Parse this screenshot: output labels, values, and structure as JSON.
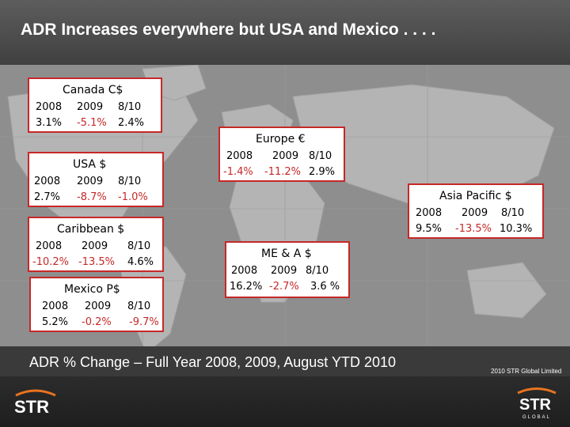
{
  "slide": {
    "title": "ADR Increases everywhere but USA and Mexico . . . .",
    "caption": "ADR % Change – Full Year 2008, 2009, August YTD 2010",
    "copyright": "2010 STR Global Limited"
  },
  "regions": [
    {
      "name": "Canada C$",
      "labels": [
        "2008",
        "2009",
        "8/10"
      ],
      "values": [
        "3.1%",
        "-5.1%",
        "2.4%"
      ]
    },
    {
      "name": "USA $",
      "labels": [
        "2008",
        "2009",
        "8/10"
      ],
      "values": [
        "2.7%",
        "-8.7%",
        "-1.0%"
      ]
    },
    {
      "name": "Caribbean $",
      "labels": [
        "2008",
        "2009",
        "8/10"
      ],
      "values": [
        "-10.2%",
        "-13.5%",
        "4.6%"
      ]
    },
    {
      "name": "Mexico P$",
      "labels": [
        "2008",
        "2009",
        "8/10"
      ],
      "values": [
        "5.2%",
        "-0.2%",
        "-9.7%"
      ]
    },
    {
      "name": "Europe €",
      "labels": [
        "2008",
        "2009",
        "8/10"
      ],
      "values": [
        "-1.4%",
        "-11.2%",
        "2.9%"
      ]
    },
    {
      "name": "Asia Pacific $",
      "labels": [
        "2008",
        "2009",
        "8/10"
      ],
      "values": [
        "9.5%",
        "-13.5%",
        "10.3%"
      ]
    },
    {
      "name": "ME & A $",
      "labels": [
        "2008",
        "2009",
        "8/10"
      ],
      "values": [
        "16.2%",
        "-2.7%",
        "3.6 %"
      ]
    }
  ],
  "logos": {
    "left_text": "STR",
    "right_text": "STR",
    "right_subtext": "GLOBAL"
  },
  "colors": {
    "negative": "#c62828",
    "border": "#c62828",
    "header": "#4a4a4a",
    "map": "#8e8e8e",
    "accent_orange": "#e8731f"
  }
}
